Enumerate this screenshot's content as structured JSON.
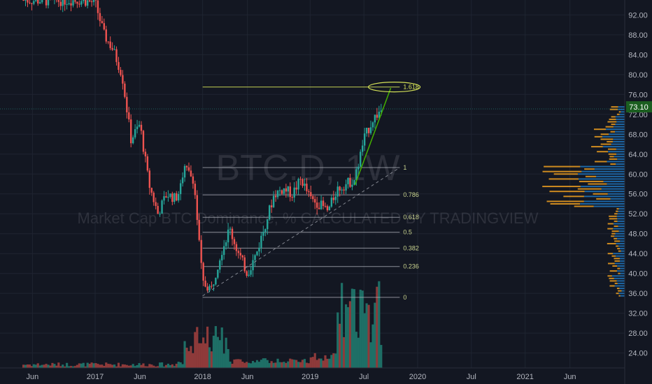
{
  "colors": {
    "background": "#131722",
    "grid": "#1f2431",
    "candle_up": "#26a69a",
    "candle_down": "#ef5350",
    "volume_up": "#1e6f66",
    "volume_down": "#8e3a3a",
    "fib_line": "#b2b5be",
    "fib_text": "#c8d28e",
    "trend_green": "#43b000",
    "ellipse": "#d4e157",
    "price_badge": "#1b5e20",
    "profile_blue": "#1f6fb2",
    "profile_orange": "#f0a020",
    "watermark": "#5d606b",
    "axis_text": "#b2b5be"
  },
  "watermark": {
    "symbol_line": "BTC.D, 1W",
    "subtitle_line": "Market Cap BTC Dominance, % CALCULATED BY TRADINGVIEW"
  },
  "current_price": "73.10",
  "chart_data": {
    "type": "candlestick",
    "x_axis": {
      "labels": [
        "Jun",
        "2017",
        "Jun",
        "2018",
        "Jun",
        "2019",
        "Jul",
        "2020",
        "Jul",
        "2021",
        "Jun"
      ],
      "dates": [
        "2016-06",
        "2017-01",
        "2017-06",
        "2018-01",
        "2018-06",
        "2019-01",
        "2019-07",
        "2020-01",
        "2020-07",
        "2021-01",
        "2021-06"
      ]
    },
    "y_axis": {
      "ticks": [
        "24.00",
        "28.00",
        "32.00",
        "36.00",
        "40.00",
        "44.00",
        "48.00",
        "52.00",
        "56.00",
        "60.00",
        "64.00",
        "68.00",
        "72.00",
        "76.00",
        "80.00",
        "84.00",
        "88.00",
        "92.00"
      ],
      "range": [
        21.0,
        95.0
      ]
    },
    "price_path": [
      [
        "2016-05",
        95.0
      ],
      [
        "2016-08",
        94.8
      ],
      [
        "2016-11",
        95.0
      ],
      [
        "2017-01",
        94.5
      ],
      [
        "2017-02",
        88.0
      ],
      [
        "2017-03",
        85.0
      ],
      [
        "2017-04",
        80.0
      ],
      [
        "2017-05",
        67.0
      ],
      [
        "2017-06",
        70.0
      ],
      [
        "2017-07",
        58.0
      ],
      [
        "2017-08",
        52.0
      ],
      [
        "2017-09",
        56.0
      ],
      [
        "2017-10",
        55.0
      ],
      [
        "2017-11",
        61.0
      ],
      [
        "2017-12",
        59.0
      ],
      [
        "2018-01",
        38.0
      ],
      [
        "2018-02",
        37.0
      ],
      [
        "2018-03",
        44.0
      ],
      [
        "2018-04",
        49.0
      ],
      [
        "2018-05",
        44.0
      ],
      [
        "2018-06",
        40.0
      ],
      [
        "2018-07",
        44.0
      ],
      [
        "2018-08",
        50.0
      ],
      [
        "2018-09",
        56.0
      ],
      [
        "2018-10",
        57.0
      ],
      [
        "2018-11",
        56.0
      ],
      [
        "2018-12",
        59.0
      ],
      [
        "2019-01",
        55.0
      ],
      [
        "2019-02",
        54.0
      ],
      [
        "2019-03",
        52.5
      ],
      [
        "2019-04",
        57.0
      ],
      [
        "2019-05",
        58.0
      ],
      [
        "2019-06",
        59.0
      ],
      [
        "2019-07",
        67.0
      ],
      [
        "2019-08",
        71.0
      ],
      [
        "2019-09",
        73.1
      ]
    ],
    "fibonacci": {
      "levels": [
        {
          "label": "0",
          "value": 35.2
        },
        {
          "label": "0.236",
          "value": 41.4
        },
        {
          "label": "0.382",
          "value": 45.1
        },
        {
          "label": "0.5",
          "value": 48.3
        },
        {
          "label": "0.618",
          "value": 51.3
        },
        {
          "label": "0.786",
          "value": 55.8
        },
        {
          "label": "1",
          "value": 61.3
        },
        {
          "label": "1.618",
          "value": 77.5
        }
      ],
      "start_date": "2018-01",
      "end_date": "2019-11"
    },
    "trend_line": {
      "from": [
        "2019-06",
        57.8
      ],
      "to": [
        "2019-10",
        77.3
      ]
    },
    "diagonal": {
      "from": [
        "2018-01",
        35.5
      ],
      "to": [
        "2019-11",
        61.3
      ]
    },
    "highlight_ellipse": {
      "date": "2019-10",
      "value": 77.5
    }
  }
}
